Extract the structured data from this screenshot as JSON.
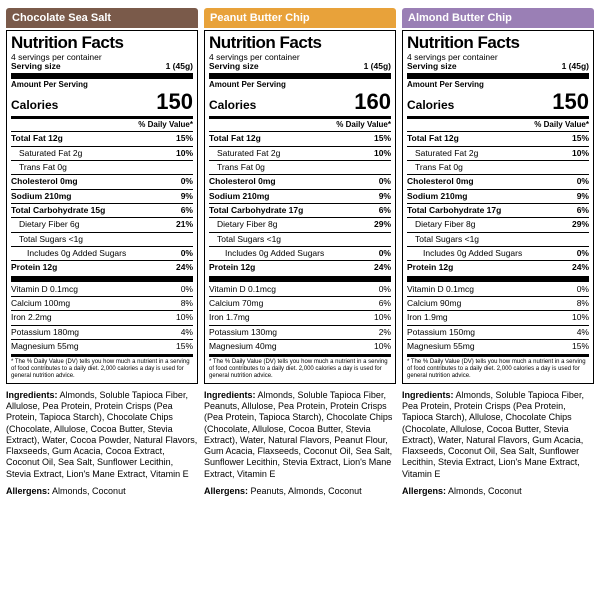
{
  "footnote": "* The % Daily Value (DV) tells you how much a nutrient in a serving of food contributes to a daily diet. 2,000 calories a day is used for general nutrition advice.",
  "products": [
    {
      "name": "Chocolate Sea Salt",
      "tab_color": "#7a5a4a",
      "servings_per": "4 servings per container",
      "serving_size_lbl": "Serving size",
      "serving_size_val": "1 (45g)",
      "aps": "Amount Per Serving",
      "cal_lbl": "Calories",
      "cal_val": "150",
      "dv_hdr": "% Daily Value*",
      "lines": [
        {
          "l": "Total Fat 12g",
          "r": "15%",
          "b": true
        },
        {
          "l": "Saturated Fat 2g",
          "r": "10%",
          "i": 1
        },
        {
          "l": "Trans Fat 0g",
          "r": "",
          "i": 1
        },
        {
          "l": "Cholesterol 0mg",
          "r": "0%",
          "b": true
        },
        {
          "l": "Sodium 210mg",
          "r": "9%",
          "b": true
        },
        {
          "l": "Total Carbohydrate 15g",
          "r": "6%",
          "b": true
        },
        {
          "l": "Dietary Fiber 6g",
          "r": "21%",
          "i": 1
        },
        {
          "l": "Total Sugars <1g",
          "r": "",
          "i": 1
        },
        {
          "l": "Includes 0g Added Sugars",
          "r": "0%",
          "i": 2
        },
        {
          "l": "Protein 12g",
          "r": "24%",
          "b": true
        }
      ],
      "vits": [
        {
          "l": "Vitamin D 0.1mcg",
          "r": "0%"
        },
        {
          "l": "Calcium 100mg",
          "r": "8%"
        },
        {
          "l": "Iron 2.2mg",
          "r": "10%"
        },
        {
          "l": "Potassium 180mg",
          "r": "4%"
        },
        {
          "l": "Magnesium 55mg",
          "r": "15%"
        }
      ],
      "ingredients": "Almonds, Soluble Tapioca Fiber, Allulose, Pea Protein, Protein Crisps (Pea Protein, Tapioca Starch), Chocolate Chips (Chocolate, Allulose, Cocoa Butter, Stevia Extract), Water, Cocoa Powder, Natural Flavors, Flaxseeds, Gum Acacia, Cocoa Extract, Coconut Oil, Sea Salt, Sunflower Lecithin, Stevia Extract, Lion's Mane Extract, Vitamin E",
      "allergens": "Almonds, Coconut"
    },
    {
      "name": "Peanut Butter Chip",
      "tab_color": "#e8a23a",
      "servings_per": "4 servings per container",
      "serving_size_lbl": "Serving size",
      "serving_size_val": "1 (45g)",
      "aps": "Amount Per Serving",
      "cal_lbl": "Calories",
      "cal_val": "160",
      "dv_hdr": "% Daily Value*",
      "lines": [
        {
          "l": "Total Fat 12g",
          "r": "15%",
          "b": true
        },
        {
          "l": "Saturated Fat 2g",
          "r": "10%",
          "i": 1
        },
        {
          "l": "Trans Fat 0g",
          "r": "",
          "i": 1
        },
        {
          "l": "Cholesterol 0mg",
          "r": "0%",
          "b": true
        },
        {
          "l": "Sodium 210mg",
          "r": "9%",
          "b": true
        },
        {
          "l": "Total Carbohydrate 17g",
          "r": "6%",
          "b": true
        },
        {
          "l": "Dietary Fiber 8g",
          "r": "29%",
          "i": 1
        },
        {
          "l": "Total Sugars <1g",
          "r": "",
          "i": 1
        },
        {
          "l": "Includes 0g Added Sugars",
          "r": "0%",
          "i": 2
        },
        {
          "l": "Protein 12g",
          "r": "24%",
          "b": true
        }
      ],
      "vits": [
        {
          "l": "Vitamin D 0.1mcg",
          "r": "0%"
        },
        {
          "l": "Calcium 70mg",
          "r": "6%"
        },
        {
          "l": "Iron 1.7mg",
          "r": "10%"
        },
        {
          "l": "Potassium 130mg",
          "r": "2%"
        },
        {
          "l": "Magnesium 40mg",
          "r": "10%"
        }
      ],
      "ingredients": "Almonds, Soluble Tapioca Fiber, Peanuts, Allulose, Pea Protein, Protein Crisps (Pea Protein, Tapioca Starch), Chocolate Chips (Chocolate, Allulose, Cocoa Butter, Stevia Extract), Water, Natural Flavors, Peanut Flour, Gum Acacia, Flaxseeds, Coconut Oil, Sea Salt, Sunflower Lecithin, Stevia Extract, Lion's Mane Extract, Vitamin E",
      "allergens": "Peanuts, Almonds, Coconut"
    },
    {
      "name": "Almond Butter Chip",
      "tab_color": "#9a7fb5",
      "servings_per": "4 servings per container",
      "serving_size_lbl": "Serving size",
      "serving_size_val": "1 (45g)",
      "aps": "Amount Per Serving",
      "cal_lbl": "Calories",
      "cal_val": "150",
      "dv_hdr": "% Daily Value*",
      "lines": [
        {
          "l": "Total Fat 12g",
          "r": "15%",
          "b": true
        },
        {
          "l": "Saturated Fat 2g",
          "r": "10%",
          "i": 1
        },
        {
          "l": "Trans Fat 0g",
          "r": "",
          "i": 1
        },
        {
          "l": "Cholesterol 0mg",
          "r": "0%",
          "b": true
        },
        {
          "l": "Sodium 210mg",
          "r": "9%",
          "b": true
        },
        {
          "l": "Total Carbohydrate 17g",
          "r": "6%",
          "b": true
        },
        {
          "l": "Dietary Fiber 8g",
          "r": "29%",
          "i": 1
        },
        {
          "l": "Total Sugars <1g",
          "r": "",
          "i": 1
        },
        {
          "l": "Includes 0g Added Sugars",
          "r": "0%",
          "i": 2
        },
        {
          "l": "Protein 12g",
          "r": "24%",
          "b": true
        }
      ],
      "vits": [
        {
          "l": "Vitamin D 0.1mcg",
          "r": "0%"
        },
        {
          "l": "Calcium 90mg",
          "r": "8%"
        },
        {
          "l": "Iron 1.9mg",
          "r": "10%"
        },
        {
          "l": "Potassium 150mg",
          "r": "4%"
        },
        {
          "l": "Magnesium 55mg",
          "r": "15%"
        }
      ],
      "ingredients": "Almonds, Soluble Tapioca Fiber, Pea Protein, Protein Crisps (Pea Protein, Tapioca Starch), Allulose, Chocolate Chips (Chocolate, Allulose, Cocoa Butter, Stevia Extract), Water, Natural Flavors, Gum Acacia, Flaxseeds, Coconut Oil, Sea Salt, Sunflower Lecithin, Stevia Extract, Lion's Mane Extract, Vitamin E",
      "allergens": "Almonds, Coconut"
    }
  ],
  "labels": {
    "ingredients": "Ingredients:",
    "allergens": "Allergens:"
  }
}
